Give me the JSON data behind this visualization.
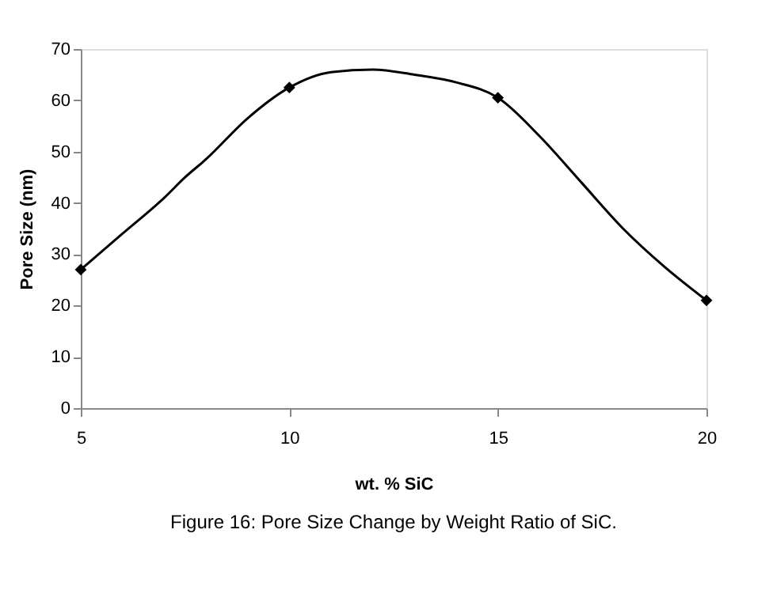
{
  "chart_data": {
    "type": "line",
    "title": "Figure 16: Pore Size Change by Weight Ratio of SiC.",
    "xlabel": "wt. % SiC",
    "ylabel": "Pore Size (nm)",
    "xlim": [
      5,
      20
    ],
    "xticks": [
      5,
      10,
      15,
      20
    ],
    "ylim": [
      0,
      70
    ],
    "yticks": [
      0,
      10,
      20,
      30,
      40,
      50,
      60,
      70
    ],
    "grid": false,
    "series": [
      {
        "color": "#000000",
        "marker": "none",
        "x": [
          5,
          6,
          7,
          7.5,
          8,
          9,
          10,
          11,
          12,
          13,
          14,
          15,
          16,
          17,
          18,
          19,
          20
        ],
        "values": [
          27,
          34,
          41,
          45,
          48.5,
          56.5,
          62.5,
          65.5,
          66,
          65,
          63.5,
          60.5,
          53,
          44,
          35,
          27.5,
          21
        ]
      },
      {
        "type": "scatter",
        "color": "#000000",
        "marker": "diamond",
        "x": [
          5,
          10,
          15,
          20
        ],
        "values": [
          27,
          62.5,
          60.5,
          21
        ]
      }
    ]
  }
}
